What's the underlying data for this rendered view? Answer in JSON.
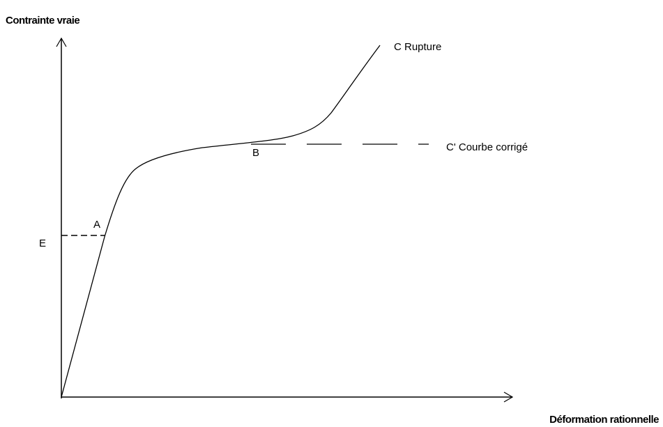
{
  "axes": {
    "y_label": "Contrainte vraie",
    "x_label": "Déformation rationnelle"
  },
  "points": {
    "rupture": "C Rupture",
    "corrected": "C' Courbe corrigé",
    "b": "B",
    "a": "A",
    "e": "E"
  }
}
